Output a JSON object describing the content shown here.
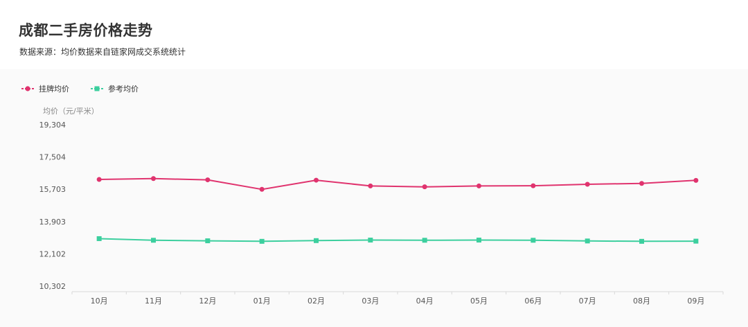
{
  "title": "成都二手房价格走势",
  "subtitle": "数据来源：均价数据来自链家网成交系统统计",
  "colors": {
    "listing": "#e0336e",
    "reference": "#3ccf9e"
  },
  "chart_data": {
    "type": "line",
    "ylabel": "均价（元/平米）",
    "categories": [
      "10月",
      "11月",
      "12月",
      "01月",
      "02月",
      "03月",
      "04月",
      "05月",
      "06月",
      "07月",
      "08月",
      "09月"
    ],
    "yticks": [
      "19,304",
      "17,504",
      "15,703",
      "13,903",
      "12,102",
      "10,302"
    ],
    "ylim": [
      10302,
      19304
    ],
    "legend_position": "top-left",
    "grid": false,
    "series": [
      {
        "name": "挂牌均价",
        "marker": "circle",
        "values": [
          16250,
          16300,
          16230,
          15700,
          16210,
          15890,
          15840,
          15890,
          15900,
          15980,
          16030,
          16200
        ]
      },
      {
        "name": "参考均价",
        "marker": "square",
        "values": [
          12950,
          12860,
          12830,
          12800,
          12840,
          12870,
          12860,
          12870,
          12860,
          12820,
          12800,
          12810
        ]
      }
    ]
  }
}
